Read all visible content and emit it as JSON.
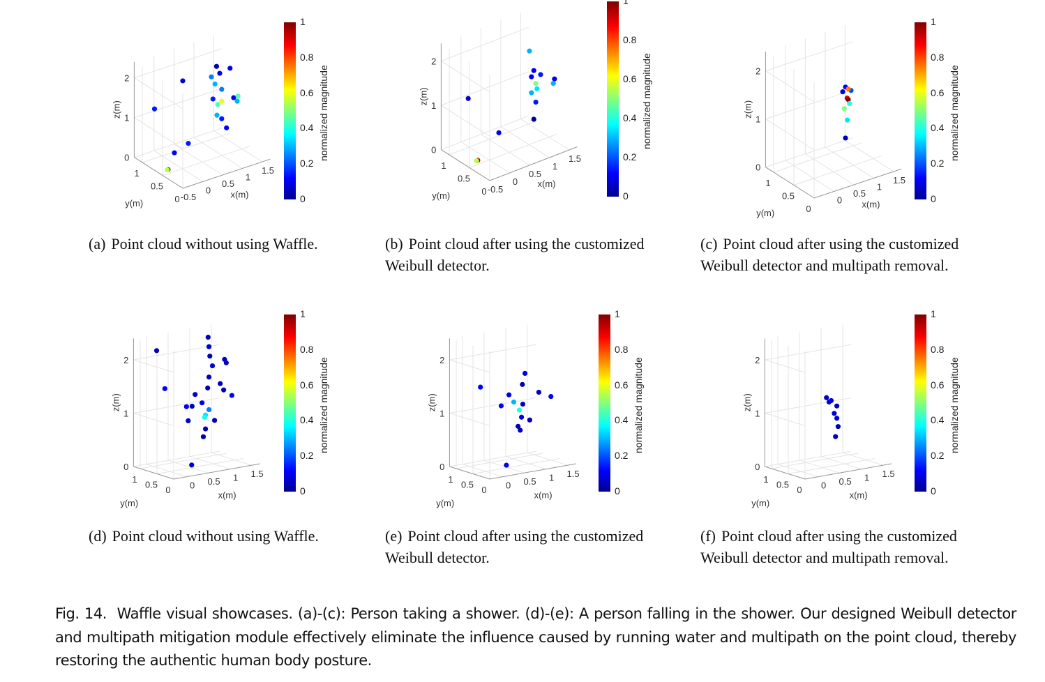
{
  "figure": {
    "label": "Fig. 14.",
    "caption": "Waffle visual showcases. (a)-(c): Person taking a shower. (d)-(e): A person falling in the shower. Our designed Weibull detector and multipath mitigation module effectively eliminate the influence caused by running water and multipath on the point cloud, thereby restoring the authentic human body posture."
  },
  "chart_data": [
    {
      "id": "a",
      "type": "scatter",
      "subcaption_label": "(a)",
      "subcaption": "Point cloud without using Waffle.",
      "xlabel": "x(m)",
      "ylabel": "y(m)",
      "zlabel": "z(m)",
      "xticks": [
        "-0.5",
        "0",
        "0.5",
        "1",
        "1.5"
      ],
      "yticks": [
        "0",
        "0.5",
        "1"
      ],
      "zticks": [
        "0",
        "1",
        "2"
      ],
      "xlim": [
        -0.5,
        1.7
      ],
      "ylim": [
        0,
        1.2
      ],
      "zlim": [
        0,
        2.4
      ],
      "colorbar": {
        "label": "normalized magnitude",
        "colormap": "jet",
        "range": [
          0,
          1
        ],
        "ticks": [
          "0",
          "0.2",
          "0.4",
          "0.6",
          "0.8",
          "1"
        ]
      },
      "points": [
        [
          0.96,
          0.6,
          2.19,
          0.05
        ],
        [
          1.04,
          0.6,
          1.99,
          0.12
        ],
        [
          1.3,
          0.6,
          2.03,
          0.1
        ],
        [
          0.92,
          0.6,
          1.76,
          0.3
        ],
        [
          1.09,
          0.6,
          1.57,
          0.25
        ],
        [
          0.99,
          0.6,
          1.22,
          0.45
        ],
        [
          1.09,
          0.6,
          1.27,
          0.6
        ],
        [
          1.39,
          0.6,
          1.26,
          0.12
        ],
        [
          1.5,
          0.6,
          1.26,
          0.45
        ],
        [
          1.48,
          0.6,
          1.14,
          0.3
        ],
        [
          0.97,
          0.6,
          0.96,
          0.3
        ],
        [
          1.09,
          0.6,
          0.83,
          0.15
        ],
        [
          1.21,
          0.6,
          0.56,
          0.12
        ],
        [
          0.83,
          0.6,
          1.97,
          0.25
        ],
        [
          0.87,
          0.6,
          1.4,
          0.15
        ],
        [
          0.11,
          0.6,
          2.11,
          0.08
        ],
        [
          -0.6,
          0.6,
          1.64,
          0.15
        ],
        [
          0.25,
          0.6,
          0.49,
          0.15
        ],
        [
          -0.1,
          0.6,
          0.37,
          0.12
        ],
        [
          -0.26,
          0.6,
          0.0,
          1.0
        ],
        [
          -0.28,
          0.6,
          0.0,
          0.55
        ]
      ]
    },
    {
      "id": "b",
      "type": "scatter",
      "subcaption_label": "(b)",
      "subcaption": "Point cloud after using the customized Weibull detector.",
      "xlabel": "x(m)",
      "ylabel": "y(m)",
      "zlabel": "z(m)",
      "xticks": [
        "-0.5",
        "0",
        "0.5",
        "1",
        "1.5"
      ],
      "yticks": [
        "0",
        "0.5",
        "1"
      ],
      "zticks": [
        "0",
        "1",
        "2"
      ],
      "xlim": [
        -0.5,
        1.7
      ],
      "ylim": [
        0,
        1.2
      ],
      "zlim": [
        0,
        2.4
      ],
      "colorbar": {
        "label": "normalized magnitude",
        "colormap": "jet",
        "range": [
          0,
          1
        ],
        "ticks": [
          "0",
          "0.2",
          "0.4",
          "0.6",
          "0.8",
          "1"
        ]
      },
      "points": [
        [
          1.11,
          0.6,
          2.02,
          0.3
        ],
        [
          1.22,
          0.6,
          1.54,
          0.1
        ],
        [
          1.39,
          0.6,
          1.39,
          0.15
        ],
        [
          1.16,
          0.6,
          1.42,
          0.12
        ],
        [
          1.27,
          0.6,
          1.23,
          0.5
        ],
        [
          1.3,
          0.6,
          1.1,
          0.35
        ],
        [
          1.16,
          0.6,
          1.06,
          0.3
        ],
        [
          1.74,
          0.6,
          1.17,
          0.12
        ],
        [
          1.71,
          0.6,
          1.08,
          0.3
        ],
        [
          1.27,
          0.6,
          0.81,
          0.15
        ],
        [
          1.22,
          0.6,
          0.44,
          0.02
        ],
        [
          -0.43,
          0.6,
          1.48,
          0.08
        ],
        [
          0.34,
          0.6,
          0.44,
          0.1
        ],
        [
          -0.19,
          0.6,
          0.0,
          0.95
        ],
        [
          -0.22,
          0.6,
          0.0,
          0.55
        ]
      ]
    },
    {
      "id": "c",
      "type": "scatter",
      "subcaption_label": "(c)",
      "subcaption": "Point cloud after using the customized Weibull detector and multipath removal.",
      "xlabel": "x(m)",
      "ylabel": "y(m)",
      "zlabel": "z(m)",
      "xticks": [
        "0",
        "0.5",
        "1",
        "1.5"
      ],
      "yticks": [
        "0",
        "0.5",
        "1"
      ],
      "zticks": [
        "0",
        "1",
        "2"
      ],
      "xlim": [
        -0.5,
        1.7
      ],
      "ylim": [
        0,
        1.2
      ],
      "zlim": [
        0,
        2.4
      ],
      "colorbar": {
        "label": "normalized magnitude",
        "colormap": "jet",
        "range": [
          0,
          1
        ],
        "ticks": [
          "0",
          "0.2",
          "0.4",
          "0.6",
          "0.8",
          "1"
        ]
      },
      "points": [
        [
          0.9,
          0.6,
          1.6,
          0.12
        ],
        [
          1.04,
          0.6,
          1.49,
          0.2
        ],
        [
          0.83,
          0.6,
          1.52,
          0.1
        ],
        [
          0.97,
          0.6,
          1.54,
          0.75
        ],
        [
          0.94,
          0.6,
          1.36,
          0.9
        ],
        [
          0.97,
          0.6,
          1.32,
          1.0
        ],
        [
          1.0,
          0.6,
          1.23,
          0.4
        ],
        [
          0.87,
          0.6,
          1.16,
          0.5
        ],
        [
          0.95,
          0.6,
          0.9,
          0.35
        ],
        [
          0.9,
          0.6,
          0.54,
          0.05
        ]
      ]
    },
    {
      "id": "d",
      "type": "scatter",
      "subcaption_label": "(d)",
      "subcaption": "Point cloud without using Waffle.",
      "xlabel": "x(m)",
      "ylabel": "y(m)",
      "zlabel": "z(m)",
      "xticks": [
        "0",
        "0.5",
        "1",
        "1.5"
      ],
      "yticks": [
        "0",
        "0.5",
        "1"
      ],
      "zticks": [
        "0",
        "1",
        "2"
      ],
      "xlim": [
        -0.3,
        1.7
      ],
      "ylim": [
        0,
        1.2
      ],
      "zlim": [
        0,
        2.4
      ],
      "colorbar": {
        "label": "normalized magnitude",
        "colormap": "jet",
        "range": [
          0,
          1
        ],
        "ticks": [
          "0",
          "0.2",
          "0.4",
          "0.6",
          "0.8",
          "1"
        ]
      },
      "points": [
        [
          0.96,
          0.6,
          2.36,
          0.05
        ],
        [
          0.98,
          0.6,
          2.18,
          0.07
        ],
        [
          1.0,
          0.6,
          2.0,
          0.05
        ],
        [
          1.06,
          0.6,
          1.81,
          0.08
        ],
        [
          0.98,
          0.6,
          1.61,
          0.06
        ],
        [
          0.95,
          0.6,
          1.41,
          0.05
        ],
        [
          1.34,
          0.6,
          1.89,
          0.05
        ],
        [
          1.38,
          0.6,
          1.82,
          0.07
        ],
        [
          1.24,
          0.6,
          1.45,
          0.05
        ],
        [
          1.32,
          0.6,
          1.32,
          0.06
        ],
        [
          1.51,
          0.6,
          1.19,
          0.12
        ],
        [
          0.66,
          0.6,
          1.33,
          0.08
        ],
        [
          0.82,
          0.6,
          1.15,
          0.1
        ],
        [
          0.59,
          0.6,
          1.12,
          0.06
        ],
        [
          0.46,
          0.6,
          1.13,
          0.12
        ],
        [
          0.9,
          0.6,
          0.91,
          0.35
        ],
        [
          0.88,
          0.6,
          0.87,
          0.4
        ],
        [
          1.11,
          0.6,
          0.78,
          0.05
        ],
        [
          0.9,
          0.6,
          0.65,
          0.05
        ],
        [
          0.85,
          0.6,
          0.51,
          0.05
        ],
        [
          0.5,
          0.6,
          0.86,
          0.06
        ],
        [
          -0.23,
          0.6,
          2.28,
          0.06
        ],
        [
          -0.04,
          0.6,
          1.54,
          0.12
        ],
        [
          0.58,
          0.6,
          0.02,
          0.08
        ],
        [
          0.98,
          0.6,
          1.0,
          0.25
        ]
      ]
    },
    {
      "id": "e",
      "type": "scatter",
      "subcaption_label": "(e)",
      "subcaption": "Point cloud after using the customized Weibull detector.",
      "xlabel": "x(m)",
      "ylabel": "y(m)",
      "zlabel": "z(m)",
      "xticks": [
        "0",
        "0.5",
        "1",
        "1.5"
      ],
      "yticks": [
        "0",
        "0.5",
        "1"
      ],
      "zticks": [
        "0",
        "1",
        "2"
      ],
      "xlim": [
        -0.3,
        1.7
      ],
      "ylim": [
        0,
        1.2
      ],
      "zlim": [
        0,
        2.4
      ],
      "colorbar": {
        "label": "normalized magnitude",
        "colormap": "jet",
        "range": [
          0,
          1
        ],
        "ticks": [
          "0",
          "0.2",
          "0.4",
          "0.6",
          "0.8",
          "1"
        ]
      },
      "points": [
        [
          0.98,
          0.6,
          1.68,
          0.1
        ],
        [
          0.92,
          0.6,
          1.48,
          0.05
        ],
        [
          0.61,
          0.6,
          1.33,
          0.1
        ],
        [
          0.72,
          0.6,
          1.18,
          0.3
        ],
        [
          0.43,
          0.6,
          1.15,
          0.12
        ],
        [
          0.85,
          0.6,
          1.01,
          0.4
        ],
        [
          0.9,
          0.6,
          0.87,
          0.1
        ],
        [
          1.3,
          0.6,
          1.28,
          0.06
        ],
        [
          1.58,
          0.6,
          1.16,
          0.12
        ],
        [
          1.09,
          0.6,
          0.79,
          0.06
        ],
        [
          0.82,
          0.6,
          0.71,
          0.05
        ],
        [
          0.87,
          0.6,
          0.63,
          0.06
        ],
        [
          -0.05,
          0.6,
          1.57,
          0.12
        ],
        [
          0.55,
          0.6,
          0.02,
          0.1
        ],
        [
          0.93,
          0.6,
          1.11,
          0.08
        ]
      ]
    },
    {
      "id": "f",
      "type": "scatter",
      "subcaption_label": "(f)",
      "subcaption": "Point cloud after using the customized Weibull detector and multipath removal.",
      "xlabel": "x(m)",
      "ylabel": "y(m)",
      "zlabel": "z(m)",
      "xticks": [
        "0",
        "0.5",
        "1",
        "1.5"
      ],
      "yticks": [
        "0",
        "0.5",
        "1"
      ],
      "zticks": [
        "0",
        "1",
        "2"
      ],
      "xlim": [
        -0.3,
        1.7
      ],
      "ylim": [
        0,
        1.2
      ],
      "zlim": [
        0,
        2.4
      ],
      "colorbar": {
        "label": "normalized magnitude",
        "colormap": "jet",
        "range": [
          0,
          1
        ],
        "ticks": [
          "0",
          "0.2",
          "0.4",
          "0.6",
          "0.8",
          "1"
        ]
      },
      "points": [
        [
          0.66,
          0.6,
          1.27,
          0.06
        ],
        [
          0.72,
          0.6,
          1.18,
          0.08
        ],
        [
          0.9,
          0.6,
          1.08,
          0.05
        ],
        [
          0.84,
          0.6,
          0.95,
          0.08
        ],
        [
          0.9,
          0.6,
          0.85,
          0.1
        ],
        [
          0.93,
          0.6,
          0.69,
          0.05
        ],
        [
          0.87,
          0.6,
          0.51,
          0.05
        ],
        [
          0.77,
          0.6,
          1.2,
          0.1
        ]
      ]
    }
  ]
}
